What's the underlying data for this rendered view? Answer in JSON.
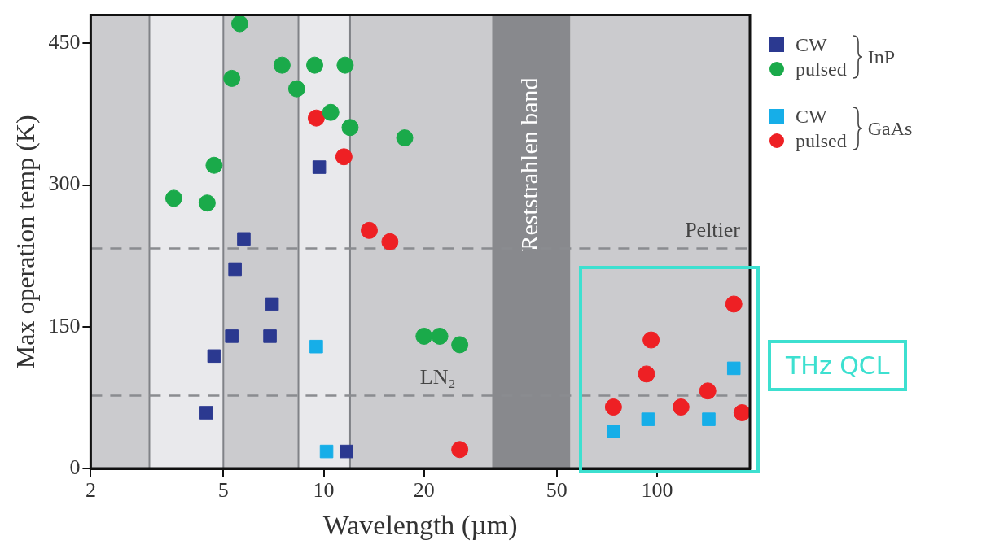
{
  "chart_data": {
    "type": "scatter",
    "xlabel": "Wavelength (µm)",
    "ylabel": "Max operation temp (K)",
    "log": "x",
    "xlim": [
      2,
      190
    ],
    "xticks": [
      2,
      5,
      10,
      20,
      50,
      100
    ],
    "ylim": [
      0,
      480
    ],
    "yticks": [
      0,
      150,
      300,
      450
    ],
    "legend": "top right",
    "series": [
      {
        "name": "CW",
        "color": "#2b3990",
        "marker": "square",
        "x": [
          4.44,
          4.69,
          5.3,
          5.42,
          5.76,
          6.9,
          7.0,
          9.7,
          11.7
        ],
        "values": [
          59,
          119,
          140,
          211,
          243,
          140,
          174,
          319,
          18
        ]
      },
      {
        "name": "pulsed",
        "color": "#1aaa4a",
        "marker": "circle",
        "x": [
          3.55,
          4.47,
          4.69,
          5.3,
          5.6,
          7.5,
          8.3,
          9.4,
          10.5,
          11.6,
          12.0,
          17.5,
          20,
          22.3,
          25.6
        ],
        "values": [
          286,
          281,
          321,
          413,
          471,
          427,
          402,
          427,
          377,
          427,
          361,
          350,
          140,
          140,
          131
        ]
      },
      {
        "name": "CW",
        "color": "#16aee8",
        "marker": "square",
        "x": [
          9.5,
          10.2,
          74,
          94,
          143,
          170
        ],
        "values": [
          129,
          18,
          39,
          52,
          52,
          106
        ]
      },
      {
        "name": "pulsed",
        "color": "#ee2024",
        "marker": "circle",
        "x": [
          9.5,
          11.5,
          13.7,
          15.8,
          25.6,
          74,
          93,
          96,
          118,
          142,
          170,
          180
        ],
        "values": [
          371,
          330,
          252,
          240,
          20,
          65,
          100,
          136,
          65,
          82,
          174,
          59
        ]
      }
    ],
    "bands": [
      {
        "axis": "x",
        "from": 2,
        "to": 3,
        "color": "#cbcbce"
      },
      {
        "axis": "x",
        "from": 3,
        "to": 5,
        "color": "#e9e9ec"
      },
      {
        "axis": "x",
        "from": 5,
        "to": 8.4,
        "color": "#cbcbce"
      },
      {
        "axis": "x",
        "from": 8.4,
        "to": 12,
        "color": "#e9e9ec"
      },
      {
        "axis": "x",
        "from": 12,
        "to": 32,
        "color": "#cbcbce"
      },
      {
        "axis": "x",
        "from": 32,
        "to": 55,
        "color": "#88898d",
        "label": "Reststrahlen band"
      },
      {
        "axis": "x",
        "from": 55,
        "to": 190,
        "color": "#cbcbce"
      }
    ],
    "ref_lines": [
      {
        "axis": "y",
        "value": 233,
        "label": "Peltier",
        "color": "#8a8c90",
        "line_style": "dashed"
      },
      {
        "axis": "y",
        "value": 77,
        "label": "LN₂",
        "color": "#8a8c90",
        "line_style": "dashed"
      }
    ],
    "annotations": [
      "THz QCL",
      "InP",
      "GaAs"
    ]
  }
}
